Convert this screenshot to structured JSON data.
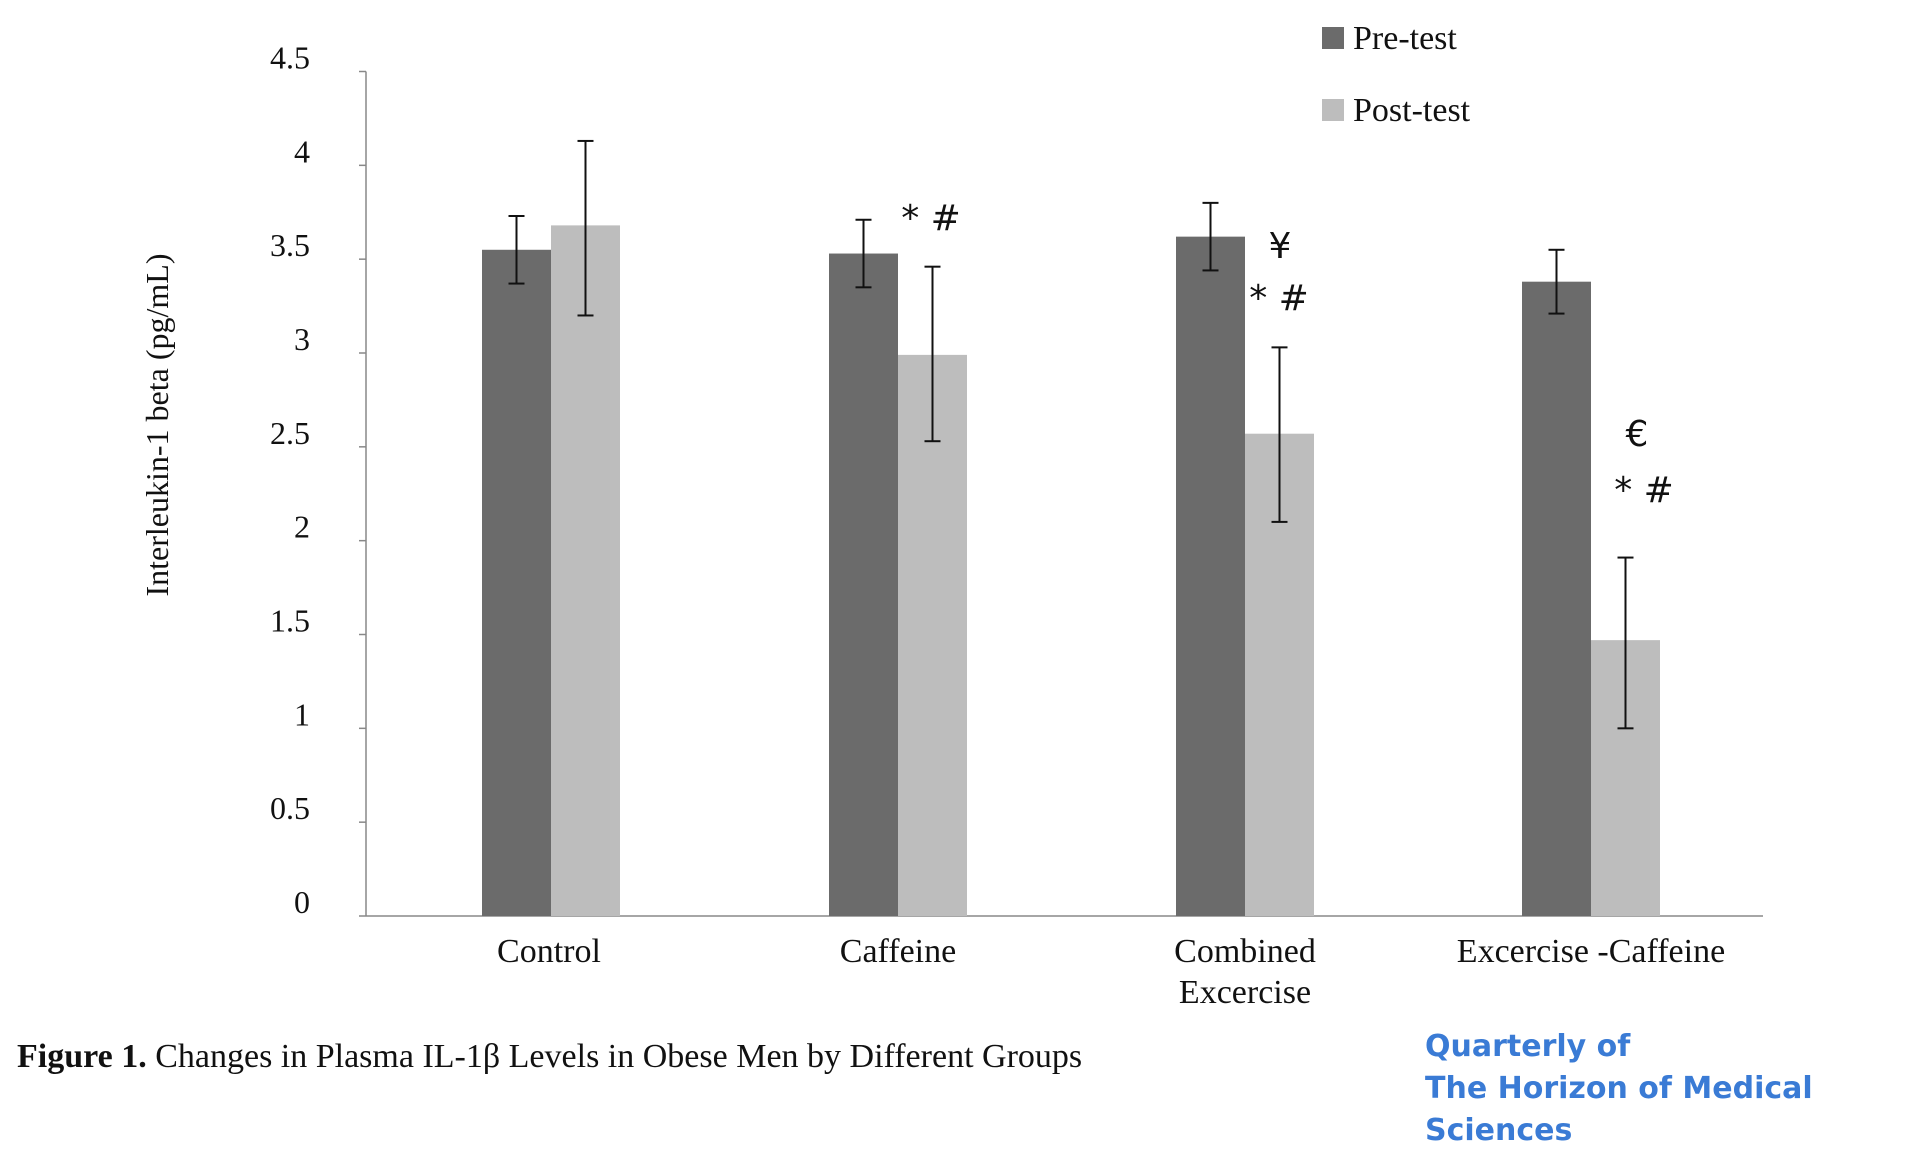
{
  "chart_data": {
    "type": "bar",
    "ylabel": "Interleukin-1 beta (pg/mL)",
    "xlabel": "",
    "ylim": [
      0,
      4.5
    ],
    "yticks": [
      "0",
      "0.5",
      "1",
      "1.5",
      "2",
      "2.5",
      "3",
      "3.5",
      "4",
      "4.5"
    ],
    "grid": false,
    "legend_position": "top-right",
    "categories": [
      "Control",
      "Caffeine",
      "Combined Excercise",
      "Excercise -Caffeine"
    ],
    "category_lines": [
      [
        "Control"
      ],
      [
        "Caffeine"
      ],
      [
        "Combined",
        "Excercise"
      ],
      [
        "Excercise -Caffeine"
      ]
    ],
    "series": [
      {
        "name": "Pre-test",
        "color": "#6b6b6b",
        "values": [
          3.55,
          3.53,
          3.62,
          3.38
        ],
        "error_low": [
          3.37,
          3.35,
          3.44,
          3.21
        ],
        "error_high": [
          3.73,
          3.71,
          3.8,
          3.55
        ]
      },
      {
        "name": "Post-test",
        "color": "#bdbdbd",
        "values": [
          3.68,
          2.99,
          2.57,
          1.47
        ],
        "error_low": [
          3.2,
          2.53,
          2.1,
          1.0
        ],
        "error_high": [
          4.13,
          3.46,
          3.03,
          1.91
        ]
      }
    ],
    "annotations": [
      {
        "category": "Caffeine",
        "lines": [
          "* #"
        ]
      },
      {
        "category": "Combined Excercise",
        "lines": [
          "¥",
          "* #"
        ]
      },
      {
        "category": "Excercise -Caffeine",
        "lines": [
          "€",
          "* #"
        ]
      }
    ]
  },
  "caption": {
    "label": "Figure 1.",
    "text": " Changes in Plasma IL-1β Levels in Obese Men by Different Groups"
  },
  "logo": {
    "line1": "Quarterly of",
    "line2": "The Horizon of Medical Sciences"
  }
}
